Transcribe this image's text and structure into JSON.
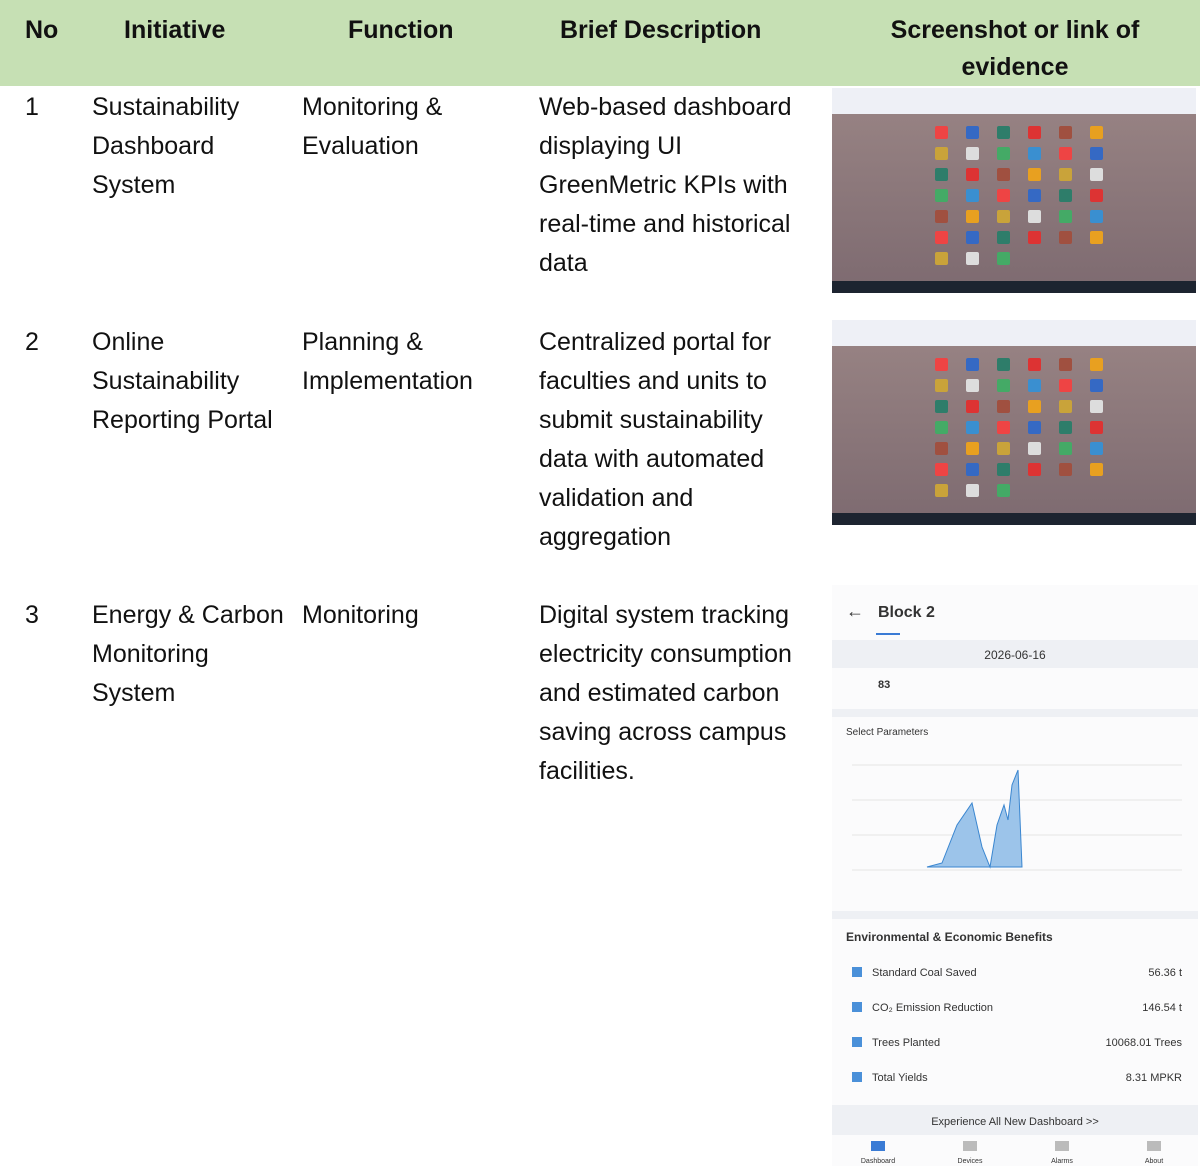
{
  "table": {
    "header": [
      "No",
      "Initiative",
      "Function",
      "Brief Description",
      "Screenshot or link of evidence"
    ],
    "rows": [
      [
        "1",
        "Sustainability Dashboard System",
        "Monitoring & Evaluation",
        "Web-based dashboard displaying UI GreenMetric KPIs with real-time and historical data"
      ],
      [
        "2",
        "Online Sustainability Reporting Portal",
        "Planning & Implementation",
        "Centralized portal for faculties and units to submit sustainability data with automated validation and aggregation"
      ],
      [
        "3",
        "Energy & Carbon Monitoring System",
        "Monitoring",
        "Digital system tracking electricity consumption and estimated carbon saving across campus facilities."
      ]
    ]
  },
  "evidence_phone": {
    "title": "Block 2",
    "date": "2026-06-16",
    "daily_production": "83",
    "select": "Select Parameters",
    "benefits_title": "Environmental & Economic Benefits",
    "benefits": [
      [
        "Standard Coal Saved",
        "56.36 t"
      ],
      [
        "CO₂ Emission Reduction",
        "146.54 t"
      ],
      [
        "Trees Planted",
        "10068.01 Trees"
      ],
      [
        "Total Yields",
        "8.31 MPKR"
      ]
    ],
    "button": "Experience All New Dashboard >>",
    "tabs": [
      "Dashboard",
      "Devices",
      "Alarms",
      "About"
    ]
  }
}
